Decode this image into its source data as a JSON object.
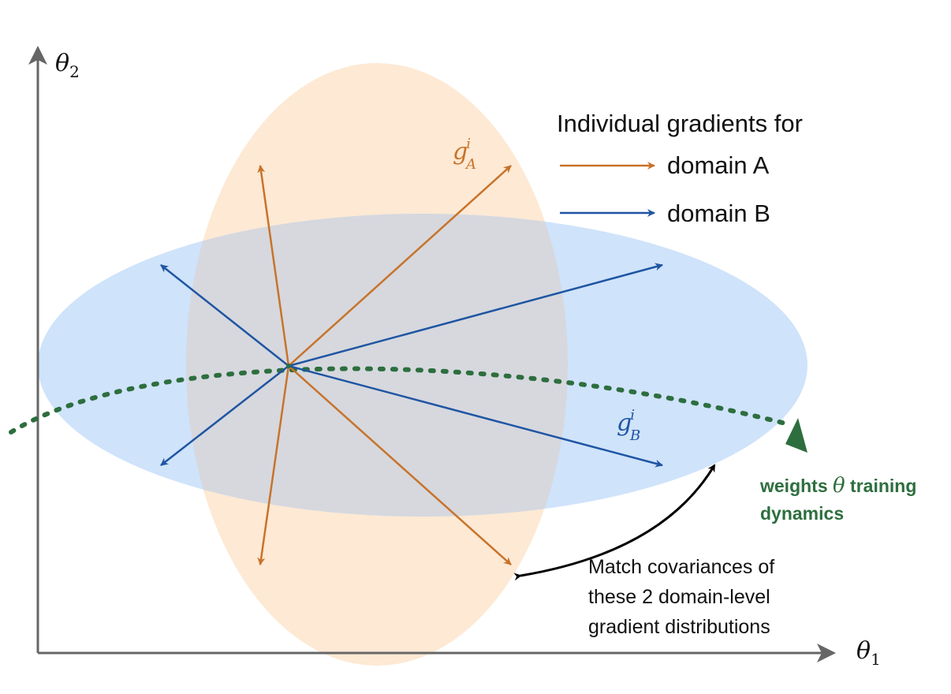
{
  "axes": {
    "x_label": "θ",
    "x_sub": "1",
    "y_label": "θ",
    "y_sub": "2"
  },
  "legend": {
    "title": "Individual gradients for",
    "items": [
      {
        "label": "domain A",
        "color": "#c8732a"
      },
      {
        "label": "domain B",
        "color": "#1f55a3"
      }
    ]
  },
  "gradient_labels": {
    "a": {
      "base": "g",
      "sup": "i",
      "sub": "A"
    },
    "b": {
      "base": "g",
      "sup": "i",
      "sub": "B"
    }
  },
  "trajectory": {
    "line1_pre": "weights ",
    "line1_theta": "θ",
    "line1_post": " training",
    "line2": "dynamics",
    "color": "#2d6e3e"
  },
  "match_note": {
    "line1": "Match covariances of",
    "line2": "these 2 domain-level",
    "line3": "gradient distributions"
  },
  "colors": {
    "domain_a_fill": "#fde9d4",
    "domain_b_fill": "#cfe3fa",
    "overlap_fill": "#d6d8de",
    "axis": "#666666"
  }
}
